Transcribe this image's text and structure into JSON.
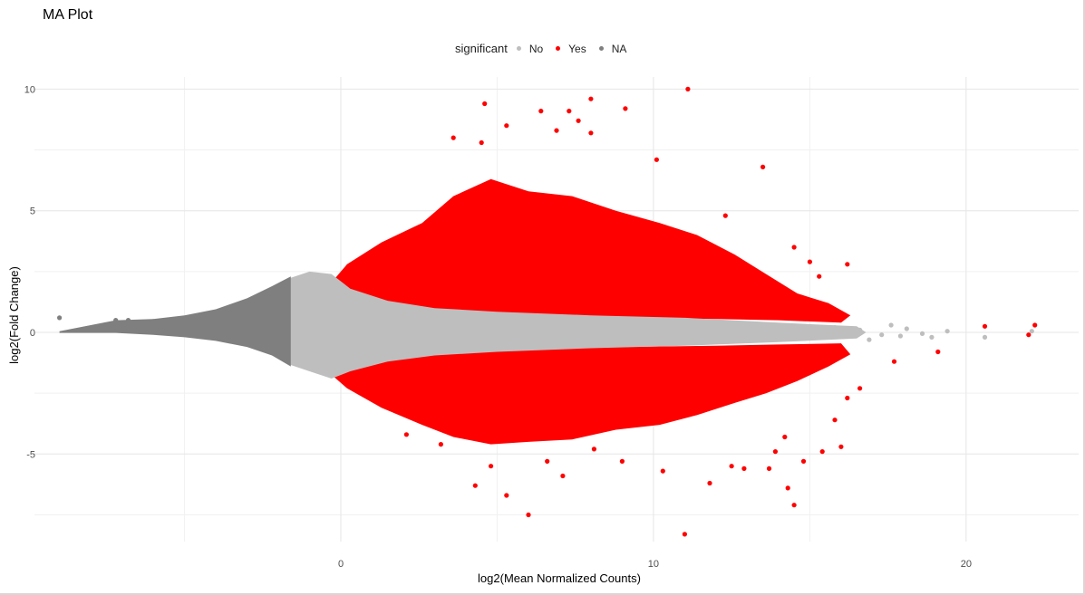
{
  "chart_data": {
    "type": "scatter",
    "title": "MA Plot",
    "xlabel": "log2(Mean Normalized Counts)",
    "ylabel": "log2(Fold Change)",
    "xlim": [
      -9.8,
      23.6
    ],
    "ylim": [
      -8.6,
      10.5
    ],
    "x_ticks": [
      0,
      10,
      20
    ],
    "y_ticks": [
      -5,
      0,
      5,
      10
    ],
    "grid": true,
    "legend": {
      "title": "significant",
      "position": "top",
      "entries": [
        {
          "label": "No",
          "color": "#bebebe"
        },
        {
          "label": "Yes",
          "color": "#ff0000"
        },
        {
          "label": "NA",
          "color": "#7f7f7f"
        }
      ]
    },
    "series": [
      {
        "name": "No",
        "color": "#bebebe",
        "points": [
          [
            17.3,
            -0.1
          ],
          [
            17.6,
            0.3
          ],
          [
            18.1,
            0.15
          ],
          [
            18.6,
            -0.05
          ],
          [
            19.4,
            0.05
          ],
          [
            18.9,
            -0.2
          ],
          [
            17.9,
            -0.15
          ],
          [
            16.6,
            0.1
          ],
          [
            16.2,
            -0.05
          ],
          [
            20.6,
            -0.2
          ],
          [
            22.1,
            0.05
          ],
          [
            15.8,
            0.2
          ],
          [
            15.3,
            -0.1
          ],
          [
            14.9,
            0.1
          ],
          [
            14.5,
            -0.05
          ],
          [
            16.9,
            -0.3
          ]
        ]
      },
      {
        "name": "Yes",
        "color": "#ff0000",
        "points": [
          [
            11.1,
            10.0
          ],
          [
            8.0,
            9.6
          ],
          [
            4.6,
            9.4
          ],
          [
            7.3,
            9.1
          ],
          [
            6.4,
            9.1
          ],
          [
            7.6,
            8.7
          ],
          [
            9.1,
            9.2
          ],
          [
            5.3,
            8.5
          ],
          [
            8.0,
            8.2
          ],
          [
            6.9,
            8.3
          ],
          [
            3.6,
            8.0
          ],
          [
            4.5,
            7.8
          ],
          [
            10.1,
            7.1
          ],
          [
            13.5,
            6.8
          ],
          [
            12.3,
            4.8
          ],
          [
            14.5,
            3.5
          ],
          [
            15.0,
            2.9
          ],
          [
            16.2,
            2.8
          ],
          [
            15.3,
            2.3
          ],
          [
            20.6,
            0.25
          ],
          [
            22.2,
            0.3
          ],
          [
            22.0,
            -0.1
          ],
          [
            19.1,
            -0.8
          ],
          [
            17.7,
            -1.2
          ],
          [
            16.6,
            -2.3
          ],
          [
            16.2,
            -2.7
          ],
          [
            15.8,
            -3.6
          ],
          [
            16.0,
            -4.7
          ],
          [
            15.4,
            -4.9
          ],
          [
            14.2,
            -4.3
          ],
          [
            13.7,
            -5.6
          ],
          [
            14.8,
            -5.3
          ],
          [
            14.3,
            -6.4
          ],
          [
            14.5,
            -7.1
          ],
          [
            11.0,
            -8.3
          ],
          [
            6.0,
            -7.5
          ],
          [
            5.3,
            -6.7
          ],
          [
            4.3,
            -6.3
          ],
          [
            6.6,
            -5.3
          ],
          [
            7.1,
            -5.9
          ],
          [
            12.9,
            -5.6
          ],
          [
            13.9,
            -4.9
          ],
          [
            12.5,
            -5.5
          ],
          [
            9.0,
            -5.3
          ],
          [
            3.2,
            -4.6
          ],
          [
            2.1,
            -4.2
          ],
          [
            11.8,
            -6.2
          ],
          [
            10.3,
            -5.7
          ],
          [
            4.8,
            -5.5
          ],
          [
            8.1,
            -4.8
          ]
        ]
      },
      {
        "name": "NA",
        "color": "#7f7f7f",
        "points": [
          [
            -9.0,
            0.6
          ],
          [
            -7.2,
            0.5
          ],
          [
            -6.8,
            0.5
          ],
          [
            -6.0,
            0.45
          ],
          [
            -5.0,
            0.4
          ]
        ]
      }
    ]
  }
}
